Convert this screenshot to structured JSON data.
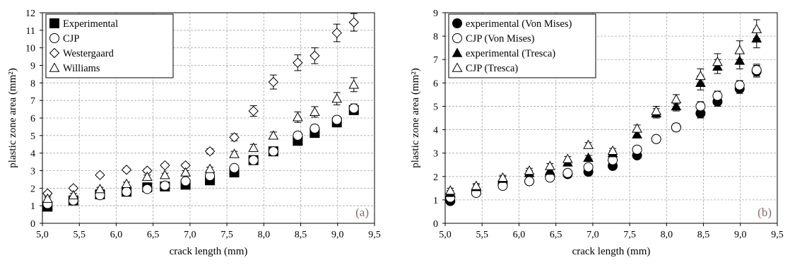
{
  "charts": [
    {
      "chart_data": {
        "type": "scatter",
        "panel_label": "(a)",
        "xlabel": "crack length (mm)",
        "ylabel": "plastic zone area (mm²)",
        "xlim": [
          5.0,
          9.5
        ],
        "ylim": [
          0,
          12
        ],
        "xticks": [
          "5,0",
          "5,5",
          "6,0",
          "6,5",
          "7,0",
          "7,5",
          "8,0",
          "8,5",
          "9,0",
          "9,5"
        ],
        "yticks": [
          "0",
          "1",
          "2",
          "3",
          "4",
          "5",
          "6",
          "7",
          "8",
          "9",
          "10",
          "11",
          "12"
        ],
        "grid": true,
        "legend_position": "top-left",
        "x": [
          5.07,
          5.42,
          5.78,
          6.14,
          6.42,
          6.66,
          6.94,
          7.27,
          7.6,
          7.86,
          8.13,
          8.46,
          8.69,
          8.99,
          9.22
        ],
        "series": [
          {
            "name": "Experimental",
            "marker": "filled-square",
            "values": [
              0.95,
              1.3,
              1.65,
              1.8,
              2.05,
              2.1,
              2.2,
              2.45,
              2.9,
              3.6,
              4.1,
              4.7,
              5.15,
              5.75,
              6.45
            ],
            "error": [
              0.1,
              0.1,
              0.1,
              0.1,
              0.1,
              0.1,
              0.1,
              0.1,
              0.1,
              0.15,
              0.15,
              0.2,
              0.2,
              0.2,
              0.25
            ]
          },
          {
            "name": "CJP",
            "marker": "open-circle",
            "values": [
              1.1,
              1.3,
              1.6,
              1.8,
              1.95,
              2.15,
              2.4,
              2.7,
              3.15,
              3.6,
              4.1,
              5.0,
              5.4,
              5.9,
              6.55
            ],
            "error": [
              0.1,
              0.1,
              0.1,
              0.1,
              0.1,
              0.1,
              0.1,
              0.1,
              0.1,
              0.15,
              0.15,
              0.2,
              0.2,
              0.2,
              0.25
            ]
          },
          {
            "name": "Westergaard",
            "marker": "open-diamond",
            "values": [
              1.7,
              2.0,
              2.75,
              3.05,
              3.0,
              3.3,
              3.3,
              4.1,
              4.9,
              6.4,
              8.05,
              9.15,
              9.55,
              10.85,
              11.45
            ],
            "error": [
              0.1,
              0.1,
              0.1,
              0.1,
              0.1,
              0.1,
              0.1,
              0.15,
              0.2,
              0.3,
              0.4,
              0.45,
              0.45,
              0.5,
              0.5
            ]
          },
          {
            "name": "Williams",
            "marker": "open-triangle",
            "values": [
              1.4,
              1.6,
              1.95,
              2.25,
              2.65,
              2.75,
              2.9,
              3.1,
              3.95,
              4.3,
              5.0,
              6.05,
              6.35,
              7.1,
              7.9
            ],
            "error": [
              0.1,
              0.1,
              0.1,
              0.1,
              0.1,
              0.1,
              0.1,
              0.1,
              0.15,
              0.2,
              0.2,
              0.3,
              0.3,
              0.35,
              0.4
            ]
          }
        ]
      }
    },
    {
      "chart_data": {
        "type": "scatter",
        "panel_label": "(b)",
        "xlabel": "crack length (mm)",
        "ylabel": "plastic zone area (mm²)",
        "xlim": [
          5.0,
          9.5
        ],
        "ylim": [
          0,
          9
        ],
        "xticks": [
          "5,0",
          "5,5",
          "6,0",
          "6,5",
          "7,0",
          "7,5",
          "8,0",
          "8,5",
          "9,0",
          "9,5"
        ],
        "yticks": [
          "0",
          "1",
          "2",
          "3",
          "4",
          "5",
          "6",
          "7",
          "8",
          "9"
        ],
        "grid": true,
        "legend_position": "top-left",
        "x": [
          5.07,
          5.42,
          5.78,
          6.14,
          6.42,
          6.66,
          6.94,
          7.27,
          7.6,
          7.86,
          8.13,
          8.46,
          8.69,
          8.99,
          9.22
        ],
        "series": [
          {
            "name": "experimental (Von Mises)",
            "marker": "filled-circle",
            "values": [
              0.95,
              1.3,
              1.65,
              1.8,
              2.0,
              2.1,
              2.2,
              2.45,
              2.9,
              3.6,
              4.1,
              4.7,
              5.2,
              5.75,
              6.5
            ],
            "error": [
              0.1,
              0.1,
              0.1,
              0.1,
              0.1,
              0.1,
              0.1,
              0.1,
              0.1,
              0.1,
              0.15,
              0.2,
              0.2,
              0.2,
              0.25
            ]
          },
          {
            "name": "CJP (Von Mises)",
            "marker": "open-circle",
            "values": [
              1.1,
              1.3,
              1.6,
              1.8,
              1.95,
              2.15,
              2.4,
              2.7,
              3.15,
              3.6,
              4.1,
              5.0,
              5.45,
              5.9,
              6.55
            ],
            "error": [
              0.1,
              0.1,
              0.1,
              0.1,
              0.1,
              0.1,
              0.1,
              0.1,
              0.1,
              0.1,
              0.15,
              0.2,
              0.2,
              0.2,
              0.25
            ]
          },
          {
            "name": "experimental (Tresca)",
            "marker": "filled-triangle",
            "values": [
              1.3,
              1.55,
              1.9,
              2.15,
              2.25,
              2.6,
              2.8,
              3.0,
              3.8,
              4.7,
              5.0,
              6.0,
              6.7,
              6.95,
              7.9
            ],
            "error": [
              0.1,
              0.1,
              0.1,
              0.1,
              0.1,
              0.1,
              0.1,
              0.1,
              0.15,
              0.2,
              0.2,
              0.3,
              0.3,
              0.35,
              0.4
            ]
          },
          {
            "name": "CJP (Tresca)",
            "marker": "open-triangle",
            "values": [
              1.4,
              1.6,
              1.95,
              2.25,
              2.45,
              2.75,
              3.35,
              3.1,
              4.05,
              4.8,
              5.3,
              6.3,
              6.9,
              7.4,
              8.3
            ],
            "error": [
              0.1,
              0.1,
              0.1,
              0.1,
              0.1,
              0.1,
              0.1,
              0.1,
              0.15,
              0.2,
              0.2,
              0.3,
              0.35,
              0.4,
              0.4
            ]
          }
        ]
      }
    }
  ]
}
